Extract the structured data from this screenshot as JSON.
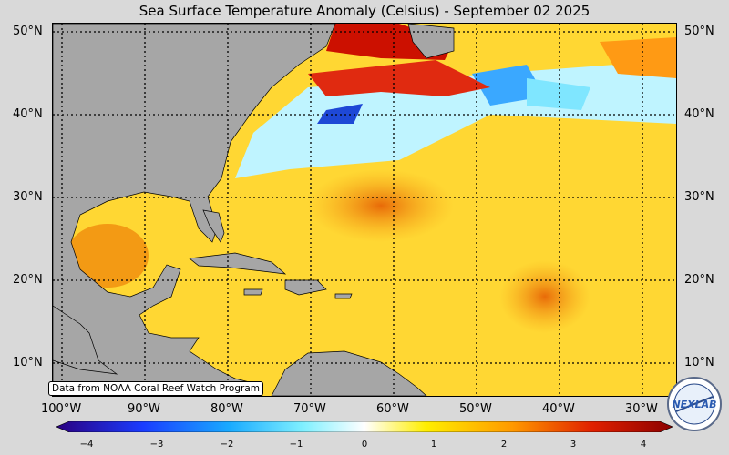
{
  "title": "Sea Surface Temperature Anomaly (Celsius) - September 02 2025",
  "lat_labels": [
    "50°N",
    "40°N",
    "30°N",
    "20°N",
    "10°N"
  ],
  "lon_labels": [
    "100°W",
    "90°W",
    "80°W",
    "70°W",
    "60°W",
    "50°W",
    "40°W",
    "30°W"
  ],
  "credit": "Data from NOAA Coral Reef Watch Program",
  "colorbar": {
    "ticks": [
      "−4",
      "−3",
      "−2",
      "−1",
      "0",
      "1",
      "2",
      "3",
      "4"
    ],
    "min": -4,
    "max": 4,
    "colors": [
      "#2a0080",
      "#1a3cff",
      "#19aaff",
      "#7ff0ff",
      "#ffffff",
      "#ffee00",
      "#ff9900",
      "#e02000",
      "#8b0000"
    ]
  },
  "logo_text": "NEXLAB",
  "colors": {
    "land": "#a6a6a6",
    "ocean_warm": "#ffd21a",
    "ocean_hot": "#f08a10"
  }
}
